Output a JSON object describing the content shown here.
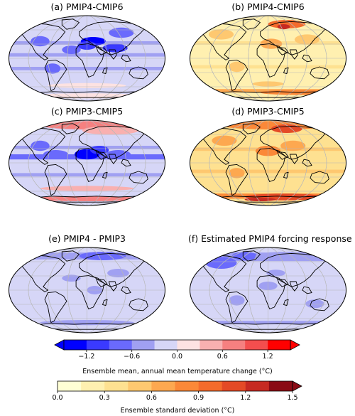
{
  "panels": [
    {
      "id": "a",
      "title": "(a) PMIP4-CMIP6",
      "scheme": "diverging",
      "pattern": "pmip4_mean"
    },
    {
      "id": "b",
      "title": "(b) PMIP4-CMIP6",
      "scheme": "sequential",
      "pattern": "pmip4_sd"
    },
    {
      "id": "c",
      "title": "(c) PMIP3-CMIP5",
      "scheme": "diverging",
      "pattern": "pmip3_mean"
    },
    {
      "id": "d",
      "title": "(d) PMIP3-CMIP5",
      "scheme": "sequential",
      "pattern": "pmip3_sd"
    },
    {
      "id": "e",
      "title": "(e) PMIP4 - PMIP3",
      "scheme": "diverging",
      "pattern": "diff"
    },
    {
      "id": "f",
      "title": "(f) Estimated PMIP4 forcing response",
      "scheme": "diverging",
      "pattern": "forcing"
    }
  ],
  "colorbars": {
    "mean": {
      "label": "Ensemble mean, annual mean temperature change (°C)",
      "ticks": [
        "−1.2",
        "−0.6",
        "0.0",
        "0.6",
        "1.2"
      ],
      "tick_values": [
        -1.2,
        -0.6,
        0.0,
        0.6,
        1.2
      ],
      "bounds": [
        -1.5,
        -1.2,
        -0.9,
        -0.6,
        -0.3,
        0.0,
        0.3,
        0.6,
        0.9,
        1.2,
        1.5
      ],
      "colors": [
        "#0000ff",
        "#3a3aff",
        "#6a6afc",
        "#a0a0f2",
        "#d6d6f7",
        "#fde2e2",
        "#f9b0b0",
        "#f68080",
        "#f44e4e",
        "#ff0000"
      ],
      "extend": "both"
    },
    "sd": {
      "label": "Ensemble standard deviation (°C)",
      "ticks": [
        "0.0",
        "0.3",
        "0.6",
        "0.9",
        "1.2",
        "1.5"
      ],
      "tick_values": [
        0.0,
        0.3,
        0.6,
        0.9,
        1.2,
        1.5
      ],
      "bounds": [
        0.0,
        0.15,
        0.3,
        0.45,
        0.6,
        0.75,
        0.9,
        1.05,
        1.2,
        1.35,
        1.5
      ],
      "colors": [
        "#ffffd4",
        "#fff0b0",
        "#fee191",
        "#fec870",
        "#fda850",
        "#fb8838",
        "#f46b2c",
        "#e44a26",
        "#c62a22",
        "#8a0a14"
      ],
      "extend": "max"
    }
  }
}
